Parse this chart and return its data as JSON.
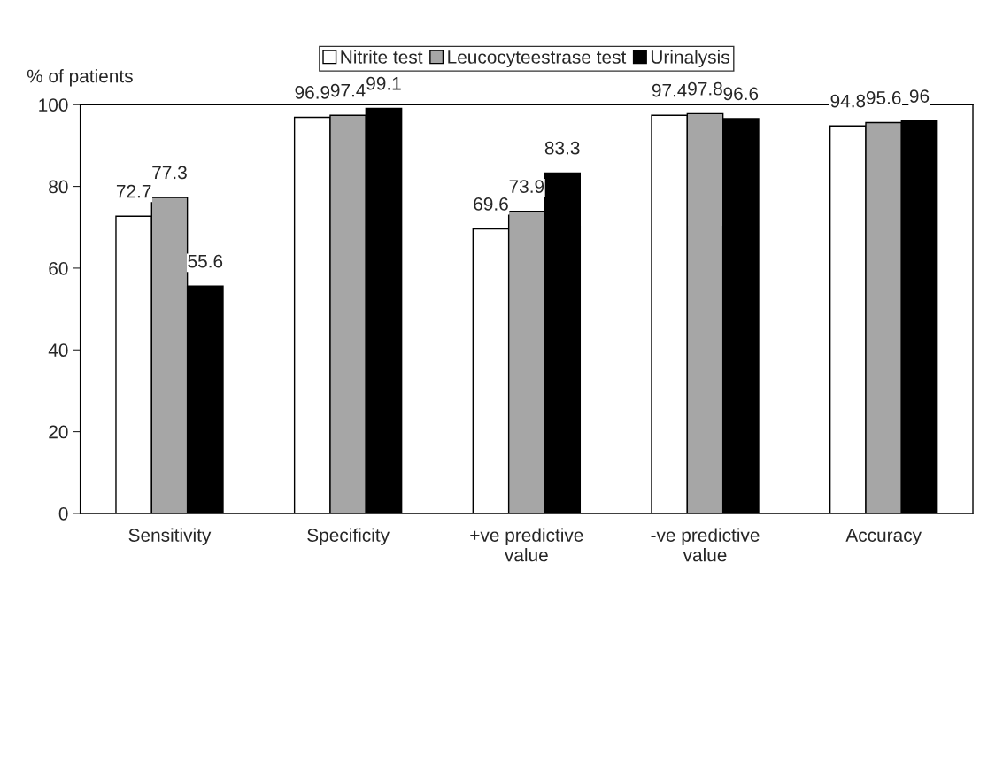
{
  "chart_data": {
    "type": "bar",
    "ylabel": "% of patients",
    "categories": [
      "Sensitivity",
      "Specificity",
      "+ve predictive value",
      "-ve predictive value",
      "Accuracy"
    ],
    "series": [
      {
        "name": "Nitrite test",
        "color": "#ffffff",
        "values": [
          72.7,
          96.9,
          69.6,
          97.4,
          94.8
        ]
      },
      {
        "name": "Leucocyteestrase test",
        "color": "#a6a6a6",
        "values": [
          77.3,
          97.4,
          73.9,
          97.8,
          95.6
        ]
      },
      {
        "name": "Urinalysis",
        "color": "#000000",
        "values": [
          55.6,
          99.1,
          83.3,
          96.6,
          96
        ]
      }
    ],
    "ylim": [
      0,
      100
    ],
    "yticks": [
      0,
      20,
      40,
      60,
      80,
      100
    ],
    "data_labels": true,
    "legend": "top",
    "grid": false
  }
}
